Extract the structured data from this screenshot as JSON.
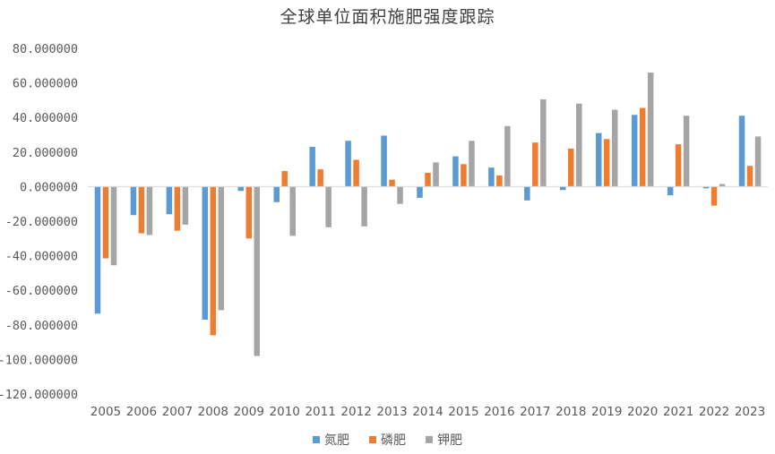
{
  "chart_data": {
    "type": "bar",
    "title": "全球单位面积施肥强度跟踪",
    "categories": [
      "2005",
      "2006",
      "2007",
      "2008",
      "2009",
      "2010",
      "2011",
      "2012",
      "2013",
      "2014",
      "2015",
      "2016",
      "2017",
      "2018",
      "2019",
      "2020",
      "2021",
      "2022",
      "2023"
    ],
    "series": [
      {
        "name": "氮肥",
        "color": "#5B9BD5",
        "values": [
          -73.5,
          -16.5,
          -16,
          -77,
          -2.5,
          -9,
          23,
          26.5,
          29.5,
          -6.5,
          17.5,
          11,
          -8,
          -2,
          31,
          41.5,
          -5,
          -1,
          41
        ]
      },
      {
        "name": "磷肥",
        "color": "#ED7D31",
        "values": [
          -41.5,
          -27,
          -25.5,
          -86,
          -30,
          9,
          10,
          15.5,
          4,
          8,
          13,
          6.5,
          25.5,
          22,
          27.5,
          45.5,
          24.5,
          -11,
          12
        ]
      },
      {
        "name": "钾肥",
        "color": "#A5A5A5",
        "values": [
          -45.5,
          -28,
          -22,
          -71.5,
          -98,
          -28.5,
          -23.5,
          -23,
          -10,
          14,
          26.5,
          35,
          50.5,
          48,
          44.5,
          66,
          41,
          1.5,
          29
        ]
      }
    ],
    "ylim": [
      -120,
      80
    ],
    "yticks": [
      "80.000000",
      "60.000000",
      "40.000000",
      "20.000000",
      "0.000000",
      "-20.000000",
      "-40.000000",
      "-60.000000",
      "-80.000000",
      "-100.000000",
      "-120.000000"
    ],
    "ytick_values": [
      80,
      60,
      40,
      20,
      0,
      -20,
      -40,
      -60,
      -80,
      -100,
      -120
    ],
    "grid": false,
    "legend_position": "bottom"
  }
}
